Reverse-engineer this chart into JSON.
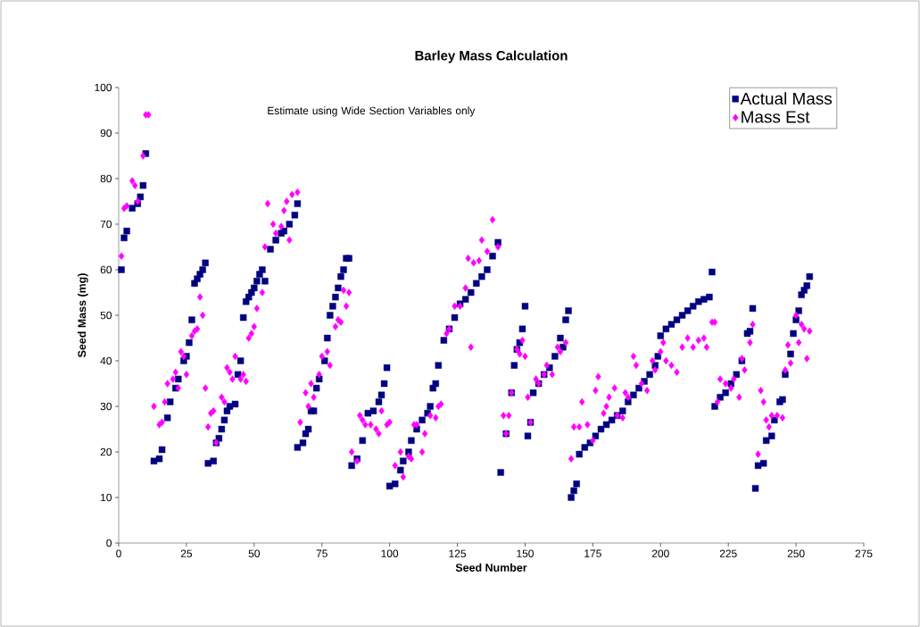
{
  "chart_data": {
    "type": "scatter",
    "title": "Barley Mass Calculation",
    "xlabel": "Seed Number",
    "ylabel": "Seed Mass (mg)",
    "annotations": [
      "Estimate using Wide Section Variables only"
    ],
    "xlim": [
      0,
      275
    ],
    "xticks": [
      0,
      25,
      50,
      75,
      100,
      125,
      150,
      175,
      200,
      225,
      250,
      275
    ],
    "ylim": [
      0,
      100
    ],
    "yticks": [
      0,
      10,
      20,
      30,
      40,
      50,
      60,
      70,
      80,
      90,
      100
    ],
    "grid": false,
    "legend": "top right",
    "series": [
      {
        "name": "Actual Mass",
        "color": "#000080",
        "marker": "square",
        "x": [
          1,
          2,
          3,
          5,
          7,
          8,
          9,
          10,
          13,
          15,
          16,
          18,
          19,
          21,
          22,
          24,
          25,
          26,
          27,
          28,
          29,
          30,
          31,
          32,
          33,
          35,
          36,
          37,
          38,
          39,
          40,
          41,
          43,
          44,
          45,
          46,
          47,
          48,
          49,
          50,
          51,
          52,
          53,
          54,
          56,
          58,
          60,
          61,
          63,
          65,
          66,
          66,
          68,
          69,
          70,
          71,
          72,
          73,
          74,
          76,
          77,
          78,
          79,
          80,
          81,
          82,
          83,
          84,
          85,
          86,
          88,
          90,
          92,
          94,
          96,
          97,
          98,
          99,
          100,
          102,
          104,
          105,
          107,
          108,
          110,
          112,
          114,
          115,
          116,
          117,
          118,
          120,
          122,
          124,
          126,
          128,
          130,
          132,
          134,
          136,
          138,
          140,
          141,
          143,
          145,
          146,
          147,
          148,
          149,
          150,
          151,
          152,
          153,
          155,
          157,
          159,
          161,
          163,
          164,
          165,
          166,
          167,
          168,
          169,
          170,
          172,
          174,
          176,
          178,
          180,
          182,
          184,
          186,
          188,
          190,
          192,
          194,
          196,
          198,
          199,
          200,
          202,
          204,
          206,
          208,
          210,
          212,
          214,
          216,
          218,
          219,
          220,
          222,
          224,
          226,
          228,
          230,
          232,
          233,
          234,
          235,
          236,
          238,
          239,
          241,
          242,
          244,
          245,
          246,
          248,
          249,
          250,
          251,
          252,
          253,
          254,
          255
        ],
        "values": [
          60,
          67,
          68.5,
          73.5,
          74.5,
          76,
          78.5,
          85.5,
          18,
          18.5,
          20.5,
          27.5,
          31,
          34,
          36,
          40,
          41,
          44,
          49,
          57,
          58,
          59,
          60,
          61.5,
          17.5,
          18,
          22,
          23,
          25,
          27,
          29,
          30,
          30.5,
          37,
          40,
          49.5,
          53,
          54,
          55,
          56,
          57.5,
          59,
          60,
          57.5,
          64.5,
          66.5,
          68,
          68.5,
          70,
          72,
          74.5,
          21,
          22,
          24,
          25,
          29,
          29,
          34,
          36,
          40,
          45,
          50,
          52,
          54,
          56,
          58.5,
          60,
          62.5,
          62.5,
          17,
          18.5,
          22.5,
          28.5,
          29,
          31,
          32.5,
          35,
          38.5,
          12.5,
          13,
          16,
          18,
          20,
          22.5,
          25,
          27,
          28.5,
          30,
          34,
          35,
          39,
          44.5,
          47,
          49.5,
          52.5,
          53.5,
          55,
          57,
          58.5,
          60,
          63,
          66,
          15.5,
          24,
          33,
          39,
          42.5,
          44,
          47,
          52,
          23.5,
          26.5,
          33,
          35,
          37,
          38.5,
          41,
          45,
          43,
          49,
          51,
          10,
          11.5,
          13,
          19.5,
          21,
          22,
          23.5,
          25,
          26,
          27,
          28,
          29,
          31,
          32.5,
          34,
          35.5,
          37,
          39,
          41,
          45.5,
          47,
          48,
          49,
          50,
          51,
          52,
          53,
          53.5,
          54,
          59.5,
          30,
          32,
          33,
          35,
          37,
          40,
          46,
          46.5,
          51.5,
          12,
          17,
          17.5,
          22.5,
          23.5,
          27,
          31,
          31.5,
          37,
          41.5,
          46,
          49,
          51,
          54.5,
          55.5,
          56.5,
          58.5
        ]
      },
      {
        "name": "Mass Est",
        "color": "#ff00ff",
        "marker": "diamond",
        "x": [
          1,
          2,
          3,
          5,
          6,
          7,
          9,
          10,
          11,
          13,
          15,
          16,
          17,
          18,
          20,
          21,
          22,
          23,
          24,
          25,
          27,
          28,
          29,
          30,
          31,
          32,
          33,
          34,
          35,
          36,
          38,
          39,
          40,
          41,
          42,
          43,
          45,
          46,
          47,
          48,
          49,
          50,
          51,
          53,
          54,
          55,
          57,
          58,
          60,
          61,
          62,
          63,
          64,
          66,
          67,
          69,
          70,
          71,
          72,
          74,
          75,
          77,
          78,
          80,
          81,
          82,
          83,
          84,
          85,
          86,
          88,
          89,
          90,
          91,
          93,
          95,
          96,
          97,
          99,
          100,
          102,
          104,
          105,
          107,
          108,
          109,
          110,
          112,
          113,
          115,
          117,
          118,
          119,
          121,
          122,
          124,
          126,
          128,
          129,
          130,
          131,
          133,
          134,
          136,
          138,
          140,
          142,
          143,
          144,
          145,
          147,
          148,
          149,
          150,
          151,
          152,
          154,
          155,
          157,
          158,
          160,
          162,
          163,
          165,
          167,
          168,
          170,
          171,
          173,
          175,
          176,
          177,
          179,
          180,
          181,
          183,
          184,
          186,
          187,
          188,
          190,
          191,
          193,
          195,
          197,
          198,
          200,
          201,
          202,
          204,
          206,
          208,
          210,
          212,
          214,
          216,
          217,
          219,
          220,
          221,
          222,
          224,
          226,
          227,
          229,
          230,
          231,
          233,
          234,
          236,
          237,
          238,
          239,
          240,
          241,
          243,
          245,
          246,
          247,
          248,
          250,
          251,
          252,
          253,
          254,
          255
        ],
        "values": [
          63,
          73.5,
          74,
          79.5,
          78.5,
          75,
          85,
          94,
          94,
          30,
          26,
          26.5,
          31,
          35,
          36,
          37.5,
          34,
          42,
          41,
          37,
          45.5,
          46.5,
          47,
          54,
          50,
          34,
          25.5,
          28.5,
          29,
          22,
          32,
          31,
          38.5,
          37.5,
          36,
          41,
          36,
          37,
          35.5,
          45,
          46,
          47.5,
          51.5,
          55,
          65,
          74.5,
          70,
          68,
          69.5,
          73,
          75,
          66.5,
          76.5,
          77,
          26.5,
          33,
          30,
          35,
          32,
          37,
          41,
          42,
          39,
          47.5,
          49,
          48.5,
          55.5,
          52,
          55,
          20,
          18,
          28,
          27,
          26,
          26,
          25,
          24,
          29,
          26,
          26.5,
          17,
          20,
          14.5,
          19,
          18.5,
          26,
          26,
          20,
          24,
          28,
          27.5,
          30,
          30.5,
          46,
          47,
          52,
          52,
          56,
          62.5,
          43,
          61.5,
          62,
          66.5,
          64,
          71,
          65,
          28,
          24,
          28,
          33,
          42.5,
          41.5,
          44.5,
          41,
          32,
          26.5,
          36,
          35,
          37,
          39,
          37,
          43,
          42,
          44,
          18.5,
          25.5,
          25.5,
          31,
          26,
          22.5,
          33.5,
          36.5,
          28.5,
          30,
          32,
          34,
          28,
          27.5,
          33,
          32,
          41,
          39,
          35,
          33.5,
          40,
          38,
          42,
          44,
          40,
          39,
          37.5,
          43,
          45,
          43,
          44.5,
          45,
          43,
          48.5,
          48.5,
          31,
          36,
          35,
          34,
          36,
          32,
          40.5,
          38,
          44,
          48,
          19.5,
          33.5,
          31,
          27,
          25.5,
          28,
          28,
          27.5,
          38,
          43.5,
          39.5,
          50,
          44,
          48,
          47,
          40.5,
          46.5
        ]
      }
    ]
  }
}
